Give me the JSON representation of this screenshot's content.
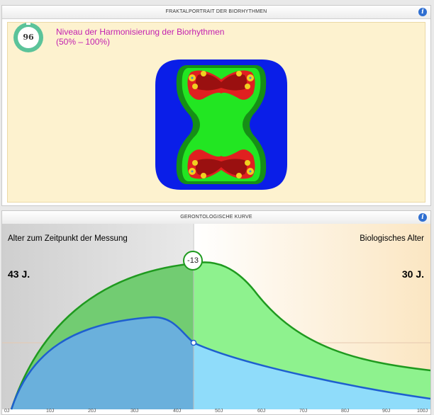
{
  "fractal_panel": {
    "title": "FRAKTALPORTRAIT DER BIORHYTHMEN",
    "info_icon": "info-icon",
    "score": "96",
    "harmony_title_line1": "Niveau der Harmonisierung der Biorhythmen",
    "harmony_title_line2": "(50% – 100%)",
    "colors": {
      "title": "#c21fb0",
      "badge": "#5bc39a",
      "fractal_outer": "#0a1ee8",
      "fractal_green": "#22e622",
      "fractal_red": "#e02020"
    }
  },
  "curve_panel": {
    "title": "GERONTOLOGISCHE KURVE",
    "info_icon": "info-icon",
    "left_label": "Alter zum Zeitpunkt der Messung",
    "right_label": "Biologisches Alter",
    "chronological_age": "43 J.",
    "biological_age": "30 J.",
    "difference": "-13",
    "x_ticks": [
      "0J",
      "10J",
      "20J",
      "30J",
      "40J",
      "50J",
      "60J",
      "70J",
      "80J",
      "90J",
      "100J"
    ],
    "colors": {
      "chronological": "#1e5fcf",
      "biological": "#1f9a1f"
    }
  }
}
